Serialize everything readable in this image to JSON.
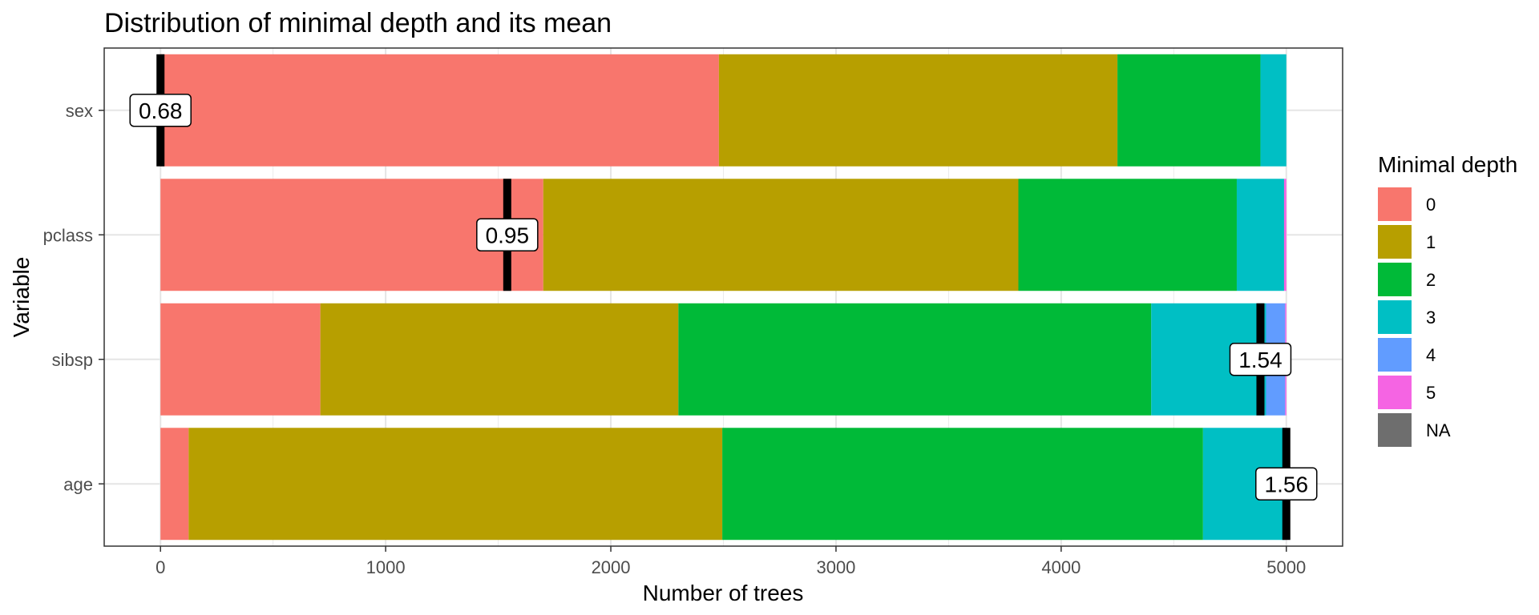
{
  "chart_data": {
    "type": "bar",
    "orientation": "horizontal",
    "stacked": true,
    "title": "Distribution of minimal depth and its mean",
    "xlabel": "Number of trees",
    "ylabel": "Variable",
    "xlim": [
      -250,
      5250
    ],
    "x_ticks": [
      0,
      1000,
      2000,
      3000,
      4000,
      5000
    ],
    "categories": [
      "sex",
      "pclass",
      "sibsp",
      "age"
    ],
    "legend": {
      "title": "Minimal depth",
      "position": "right"
    },
    "grid": true,
    "series": [
      {
        "name": "0",
        "color": "#F8766D",
        "values": [
          2480,
          1700,
          710,
          125
        ]
      },
      {
        "name": "1",
        "color": "#B79F00",
        "values": [
          1770,
          2110,
          1590,
          2370
        ]
      },
      {
        "name": "2",
        "color": "#00BA38",
        "values": [
          635,
          970,
          2100,
          2135
        ]
      },
      {
        "name": "3",
        "color": "#00BFC4",
        "values": [
          115,
          210,
          510,
          365
        ]
      },
      {
        "name": "4",
        "color": "#619CFF",
        "values": [
          0,
          0,
          85,
          0
        ]
      },
      {
        "name": "5",
        "color": "#F564E3",
        "values": [
          0,
          10,
          5,
          5
        ]
      },
      {
        "name": "NA",
        "color": "#6E6E6E",
        "values": [
          0,
          0,
          0,
          0
        ]
      }
    ],
    "means": [
      {
        "category": "sex",
        "x": 0,
        "label": "0.68"
      },
      {
        "category": "pclass",
        "x": 1540,
        "label": "0.95"
      },
      {
        "category": "sibsp",
        "x": 4885,
        "label": "1.54"
      },
      {
        "category": "age",
        "x": 5000,
        "label": "1.56"
      }
    ]
  }
}
